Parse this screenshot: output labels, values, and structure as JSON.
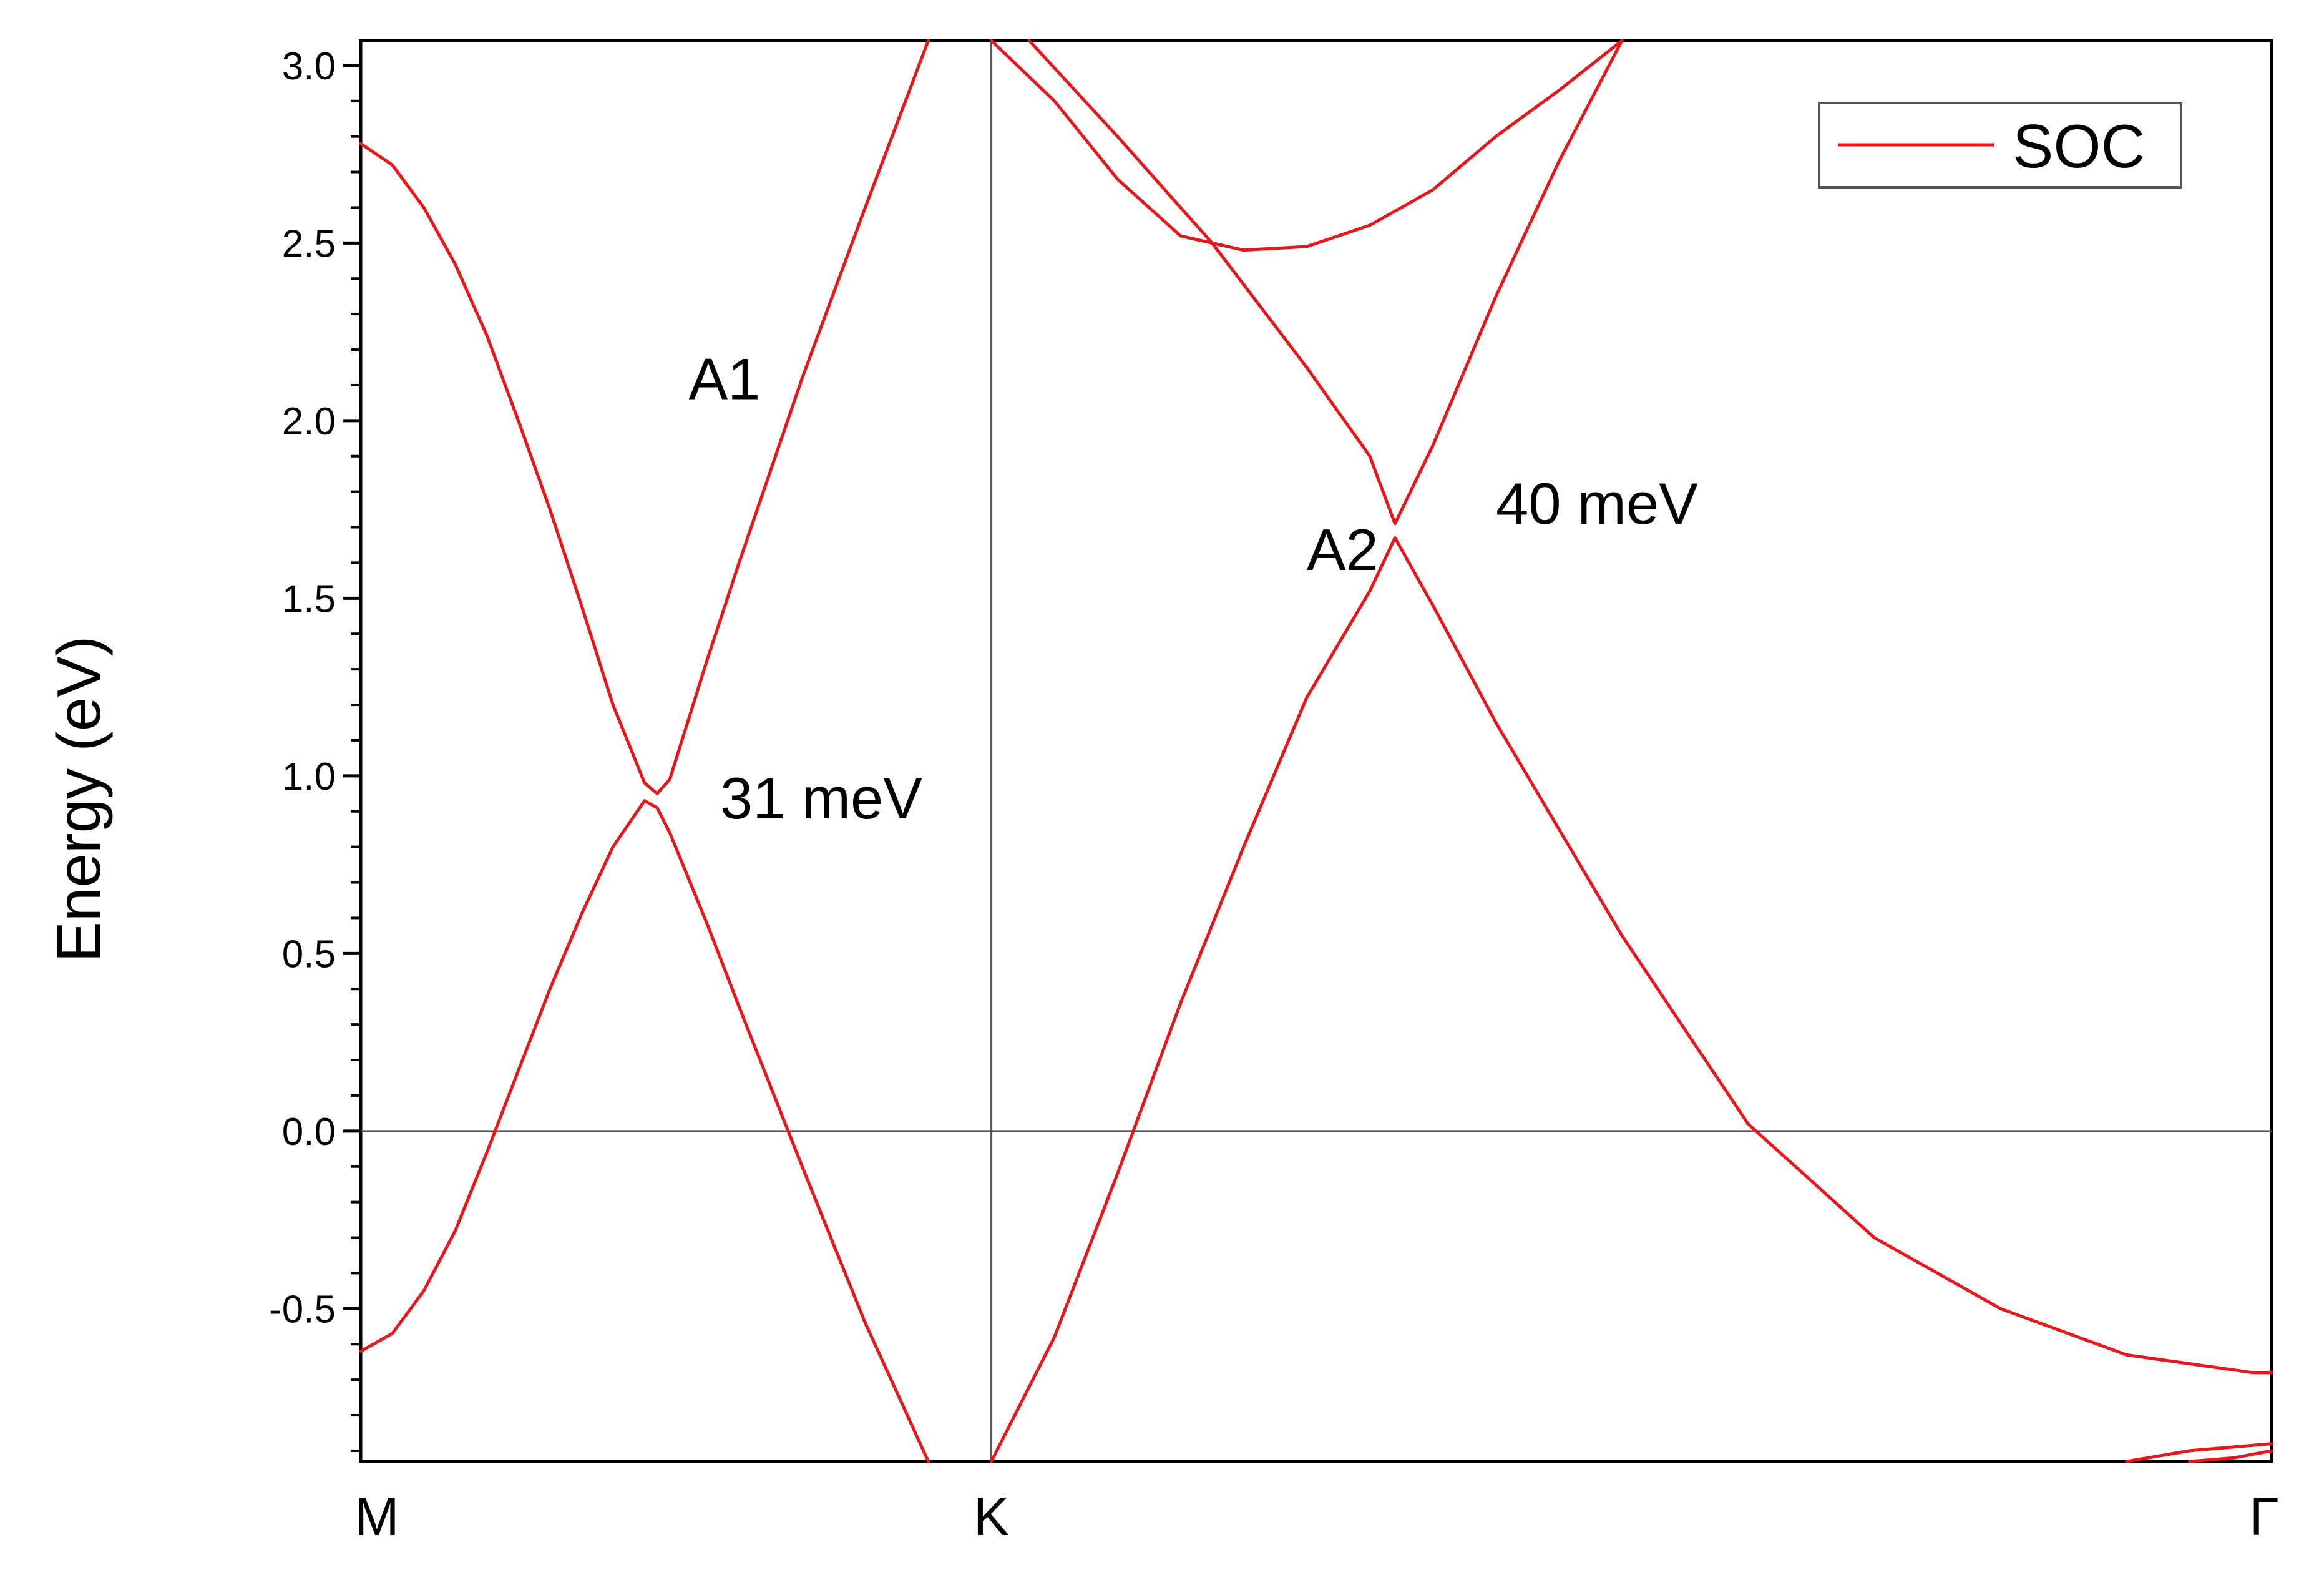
{
  "chart_data": {
    "type": "line",
    "ylabel": "Energy (eV)",
    "xlabel": "",
    "ylim": [
      -0.93,
      3.07
    ],
    "yticks": [
      "3.0",
      "2.5",
      "2.0",
      "1.5",
      "1.0",
      "0.5",
      "0.0",
      "-0.5"
    ],
    "kpoints": [
      {
        "label": "M",
        "x": 0
      },
      {
        "label": "K",
        "x": 1
      },
      {
        "label": "Γ",
        "x": 3.03
      }
    ],
    "legend": {
      "label": "SOC",
      "position": "top-right"
    },
    "color": "#e8171c",
    "annotations": [
      {
        "text": "A1",
        "x": 0.52,
        "y": 2.06
      },
      {
        "text": "31 meV",
        "x": 0.57,
        "y": 0.88
      },
      {
        "text": "A2",
        "x": 1.5,
        "y": 1.58
      },
      {
        "text": "40 meV",
        "x": 1.8,
        "y": 1.71
      }
    ],
    "series": [
      {
        "values": [
          [
            0,
            2.78
          ],
          [
            0.05,
            2.72
          ],
          [
            0.1,
            2.6
          ],
          [
            0.15,
            2.44
          ],
          [
            0.2,
            2.24
          ],
          [
            0.25,
            2.0
          ],
          [
            0.3,
            1.75
          ],
          [
            0.35,
            1.48
          ],
          [
            0.4,
            1.2
          ],
          [
            0.45,
            0.98
          ],
          [
            0.47,
            0.95
          ],
          [
            0.49,
            0.99
          ],
          [
            0.55,
            1.33
          ],
          [
            0.6,
            1.6
          ],
          [
            0.7,
            2.12
          ],
          [
            0.8,
            2.6
          ],
          [
            0.9,
            3.07
          ]
        ]
      },
      {
        "values": [
          [
            0,
            -0.62
          ],
          [
            0.05,
            -0.57
          ],
          [
            0.1,
            -0.45
          ],
          [
            0.15,
            -0.28
          ],
          [
            0.2,
            -0.06
          ],
          [
            0.25,
            0.17
          ],
          [
            0.3,
            0.4
          ],
          [
            0.35,
            0.61
          ],
          [
            0.4,
            0.8
          ],
          [
            0.45,
            0.93
          ],
          [
            0.47,
            0.91
          ],
          [
            0.49,
            0.84
          ],
          [
            0.55,
            0.58
          ],
          [
            0.6,
            0.35
          ],
          [
            0.7,
            -0.1
          ],
          [
            0.8,
            -0.54
          ],
          [
            0.9,
            -0.93
          ]
        ]
      },
      {
        "values": [
          [
            1.0,
            -0.93
          ],
          [
            1.1,
            -0.58
          ],
          [
            1.2,
            -0.12
          ],
          [
            1.3,
            0.36
          ],
          [
            1.4,
            0.8
          ],
          [
            1.5,
            1.22
          ],
          [
            1.6,
            1.52
          ],
          [
            1.64,
            1.67
          ],
          [
            1.7,
            1.48
          ],
          [
            1.8,
            1.15
          ],
          [
            2.0,
            0.55
          ],
          [
            2.2,
            0.02
          ],
          [
            2.4,
            -0.3
          ],
          [
            2.6,
            -0.5
          ],
          [
            2.8,
            -0.63
          ],
          [
            3.0,
            -0.68
          ],
          [
            3.03,
            -0.68
          ]
        ]
      },
      {
        "values": [
          [
            1.06,
            3.07
          ],
          [
            1.2,
            2.8
          ],
          [
            1.35,
            2.5
          ],
          [
            1.5,
            2.15
          ],
          [
            1.6,
            1.9
          ],
          [
            1.64,
            1.71
          ],
          [
            1.7,
            1.93
          ],
          [
            1.8,
            2.35
          ],
          [
            1.9,
            2.73
          ],
          [
            2.0,
            3.07
          ]
        ]
      },
      {
        "values": [
          [
            1.0,
            3.07
          ],
          [
            1.1,
            2.9
          ],
          [
            1.2,
            2.68
          ],
          [
            1.3,
            2.52
          ],
          [
            1.4,
            2.48
          ],
          [
            1.5,
            2.49
          ],
          [
            1.6,
            2.55
          ],
          [
            1.7,
            2.65
          ],
          [
            1.8,
            2.8
          ],
          [
            1.9,
            2.93
          ],
          [
            2.0,
            3.07
          ]
        ]
      },
      {
        "values": [
          [
            2.8,
            -0.93
          ],
          [
            2.9,
            -0.9
          ],
          [
            3.03,
            -0.88
          ]
        ]
      },
      {
        "values": [
          [
            2.9,
            -0.93
          ],
          [
            2.97,
            -0.92
          ],
          [
            3.03,
            -0.9
          ]
        ]
      }
    ]
  }
}
